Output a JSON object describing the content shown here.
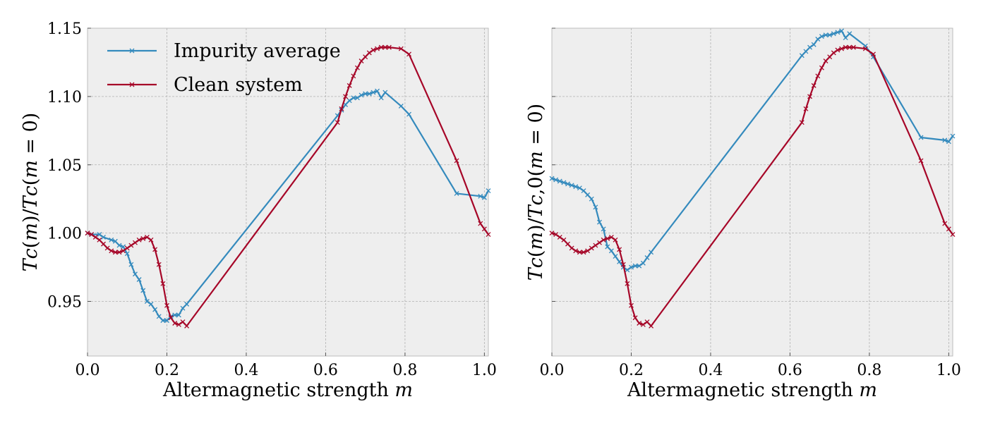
{
  "chart_data": [
    {
      "type": "line",
      "xlabel": "Altermagnetic strength 𝑚",
      "ylabel": "𝑇𝑐(𝑚)/𝑇𝑐(𝑚 = 0)",
      "xlim": [
        0.0,
        1.01
      ],
      "ylim": [
        0.91,
        1.15
      ],
      "xticks": [
        "0.0",
        "0.2",
        "0.4",
        "0.6",
        "0.8",
        "1.0"
      ],
      "xtick_values": [
        0.0,
        0.2,
        0.4,
        0.6,
        0.8,
        1.0
      ],
      "yticks": [
        "0.95",
        "1.00",
        "1.05",
        "1.10",
        "1.15"
      ],
      "ytick_values": [
        0.95,
        1.0,
        1.05,
        1.1,
        1.15
      ],
      "show_ytick_labels": true,
      "grid": true,
      "legend_position": "top-left",
      "series": [
        {
          "name": "Impurity average",
          "color": "#348ABD",
          "x": [
            0.0,
            0.01,
            0.03,
            0.04,
            0.06,
            0.07,
            0.08,
            0.09,
            0.1,
            0.11,
            0.12,
            0.13,
            0.14,
            0.15,
            0.16,
            0.17,
            0.18,
            0.19,
            0.2,
            0.21,
            0.22,
            0.23,
            0.24,
            0.25,
            0.63,
            0.64,
            0.65,
            0.66,
            0.67,
            0.68,
            0.69,
            0.7,
            0.71,
            0.72,
            0.73,
            0.74,
            0.75,
            0.79,
            0.81,
            0.93,
            0.99,
            1.0,
            1.01
          ],
          "y": [
            1.0,
            0.999,
            0.999,
            0.997,
            0.995,
            0.994,
            0.991,
            0.99,
            0.985,
            0.977,
            0.97,
            0.966,
            0.958,
            0.95,
            0.948,
            0.944,
            0.939,
            0.936,
            0.936,
            0.939,
            0.94,
            0.94,
            0.945,
            0.948,
            1.086,
            1.09,
            1.094,
            1.097,
            1.099,
            1.099,
            1.101,
            1.102,
            1.102,
            1.103,
            1.104,
            1.099,
            1.103,
            1.093,
            1.087,
            1.029,
            1.027,
            1.026,
            1.031
          ]
        },
        {
          "name": "Clean system",
          "color": "#A60628",
          "x": [
            0.0,
            0.01,
            0.02,
            0.03,
            0.04,
            0.05,
            0.06,
            0.07,
            0.08,
            0.09,
            0.1,
            0.11,
            0.12,
            0.13,
            0.14,
            0.15,
            0.16,
            0.17,
            0.18,
            0.19,
            0.2,
            0.21,
            0.22,
            0.23,
            0.24,
            0.25,
            0.63,
            0.64,
            0.65,
            0.66,
            0.67,
            0.68,
            0.69,
            0.7,
            0.71,
            0.72,
            0.73,
            0.74,
            0.75,
            0.76,
            0.79,
            0.81,
            0.93,
            0.99,
            1.0,
            1.01
          ],
          "y": [
            1.0,
            0.999,
            0.997,
            0.995,
            0.992,
            0.989,
            0.987,
            0.986,
            0.986,
            0.987,
            0.989,
            0.991,
            0.993,
            0.995,
            0.996,
            0.997,
            0.995,
            0.988,
            0.977,
            0.963,
            0.947,
            0.938,
            0.934,
            0.933,
            0.935,
            0.932,
            1.081,
            1.091,
            1.1,
            1.108,
            1.115,
            1.121,
            1.126,
            1.129,
            1.132,
            1.134,
            1.135,
            1.136,
            1.136,
            1.136,
            1.135,
            1.131,
            1.053,
            1.007,
            1.003,
            0.999
          ]
        }
      ]
    },
    {
      "type": "line",
      "xlabel": "Altermagnetic strength 𝑚",
      "ylabel": "𝑇𝑐(𝑚)/𝑇𝑐,0(𝑚 = 0)",
      "xlim": [
        0.0,
        1.01
      ],
      "ylim": [
        0.91,
        1.15
      ],
      "xticks": [
        "0.0",
        "0.2",
        "0.4",
        "0.6",
        "0.8",
        "1.0"
      ],
      "xtick_values": [
        0.0,
        0.2,
        0.4,
        0.6,
        0.8,
        1.0
      ],
      "ytick_values": [
        0.95,
        1.0,
        1.05,
        1.1,
        1.15
      ],
      "show_ytick_labels": false,
      "grid": true,
      "series": [
        {
          "name": "Impurity average",
          "color": "#348ABD",
          "x": [
            0.0,
            0.01,
            0.02,
            0.03,
            0.04,
            0.05,
            0.06,
            0.07,
            0.08,
            0.09,
            0.1,
            0.11,
            0.12,
            0.13,
            0.14,
            0.15,
            0.16,
            0.17,
            0.18,
            0.19,
            0.2,
            0.21,
            0.22,
            0.23,
            0.24,
            0.25,
            0.63,
            0.64,
            0.65,
            0.66,
            0.67,
            0.68,
            0.69,
            0.7,
            0.71,
            0.72,
            0.73,
            0.74,
            0.75,
            0.79,
            0.81,
            0.93,
            0.99,
            1.0,
            1.01
          ],
          "y": [
            1.04,
            1.039,
            1.038,
            1.037,
            1.036,
            1.035,
            1.034,
            1.033,
            1.031,
            1.028,
            1.025,
            1.019,
            1.008,
            1.003,
            0.99,
            0.987,
            0.983,
            0.979,
            0.975,
            0.973,
            0.975,
            0.976,
            0.976,
            0.978,
            0.982,
            0.986,
            1.13,
            1.133,
            1.136,
            1.138,
            1.142,
            1.144,
            1.145,
            1.145,
            1.146,
            1.147,
            1.148,
            1.143,
            1.146,
            1.137,
            1.129,
            1.07,
            1.068,
            1.067,
            1.071
          ]
        },
        {
          "name": "Clean system",
          "color": "#A60628",
          "x": [
            0.0,
            0.01,
            0.02,
            0.03,
            0.04,
            0.05,
            0.06,
            0.07,
            0.08,
            0.09,
            0.1,
            0.11,
            0.12,
            0.13,
            0.14,
            0.15,
            0.16,
            0.17,
            0.18,
            0.19,
            0.2,
            0.21,
            0.22,
            0.23,
            0.24,
            0.25,
            0.63,
            0.64,
            0.65,
            0.66,
            0.67,
            0.68,
            0.69,
            0.7,
            0.71,
            0.72,
            0.73,
            0.74,
            0.75,
            0.76,
            0.79,
            0.81,
            0.93,
            0.99,
            1.0,
            1.01
          ],
          "y": [
            1.0,
            0.999,
            0.997,
            0.995,
            0.992,
            0.989,
            0.987,
            0.986,
            0.986,
            0.987,
            0.989,
            0.991,
            0.993,
            0.995,
            0.996,
            0.997,
            0.995,
            0.988,
            0.977,
            0.963,
            0.947,
            0.938,
            0.934,
            0.933,
            0.935,
            0.932,
            1.081,
            1.091,
            1.1,
            1.108,
            1.115,
            1.121,
            1.126,
            1.129,
            1.132,
            1.134,
            1.135,
            1.136,
            1.136,
            1.136,
            1.135,
            1.131,
            1.053,
            1.007,
            1.003,
            0.999
          ]
        }
      ]
    }
  ]
}
